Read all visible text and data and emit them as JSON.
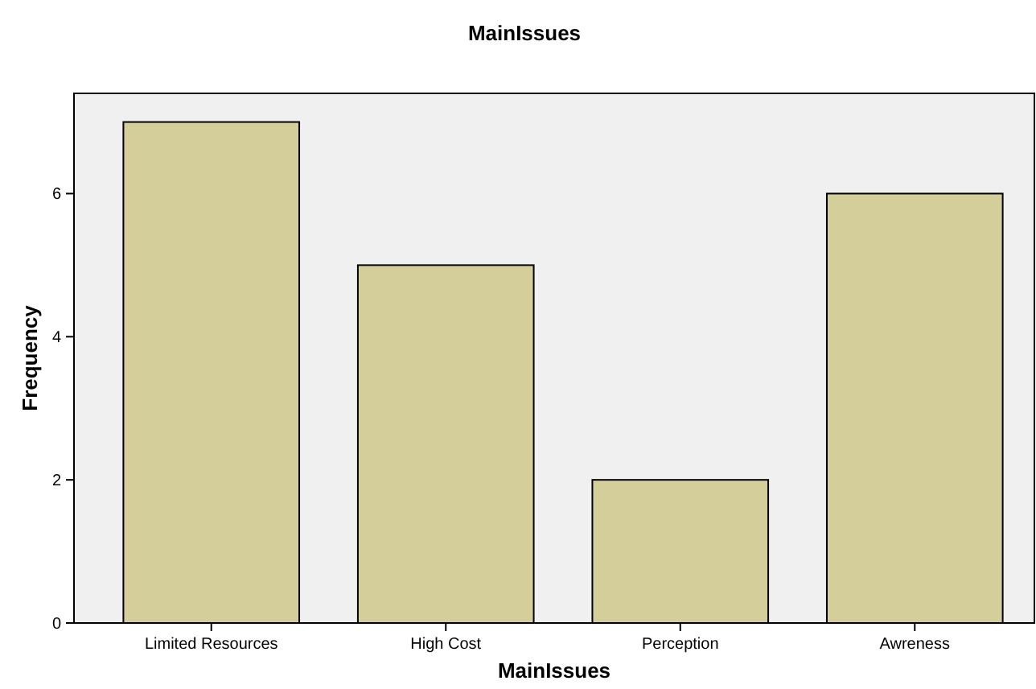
{
  "chart_data": {
    "type": "bar",
    "title": "MainIssues",
    "xlabel": "MainIssues",
    "ylabel": "Frequency",
    "categories": [
      "Limited Resources",
      "High Cost",
      "Perception",
      "Awreness"
    ],
    "values": [
      7,
      5,
      2,
      6
    ],
    "color": "#d3ce9a",
    "ylim": [
      0,
      7.4
    ],
    "yticks": [
      0,
      2,
      4,
      6
    ],
    "grid": false
  }
}
